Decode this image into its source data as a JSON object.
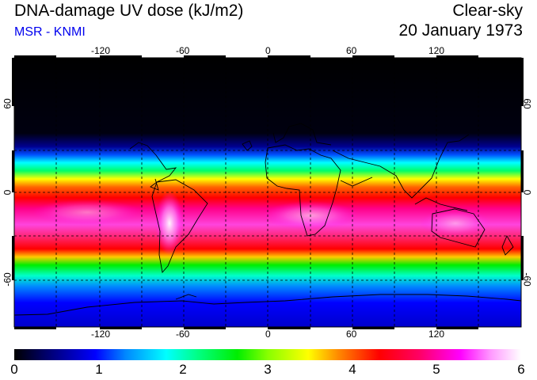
{
  "header": {
    "title": "DNA-damage UV dose (kJ/m2)",
    "subtitle": "MSR - KNMI",
    "product": "Clear-sky",
    "date": "20 January 1973"
  },
  "map": {
    "longitude_ticks": [
      "-120",
      "-60",
      "0",
      "60",
      "120"
    ],
    "latitude_ticks": [
      "60",
      "0",
      "-60"
    ]
  },
  "colorbar": {
    "labels": [
      "0",
      "1",
      "2",
      "3",
      "4",
      "5",
      "6"
    ]
  },
  "colors": {
    "subtitle": "#0000ee"
  }
}
